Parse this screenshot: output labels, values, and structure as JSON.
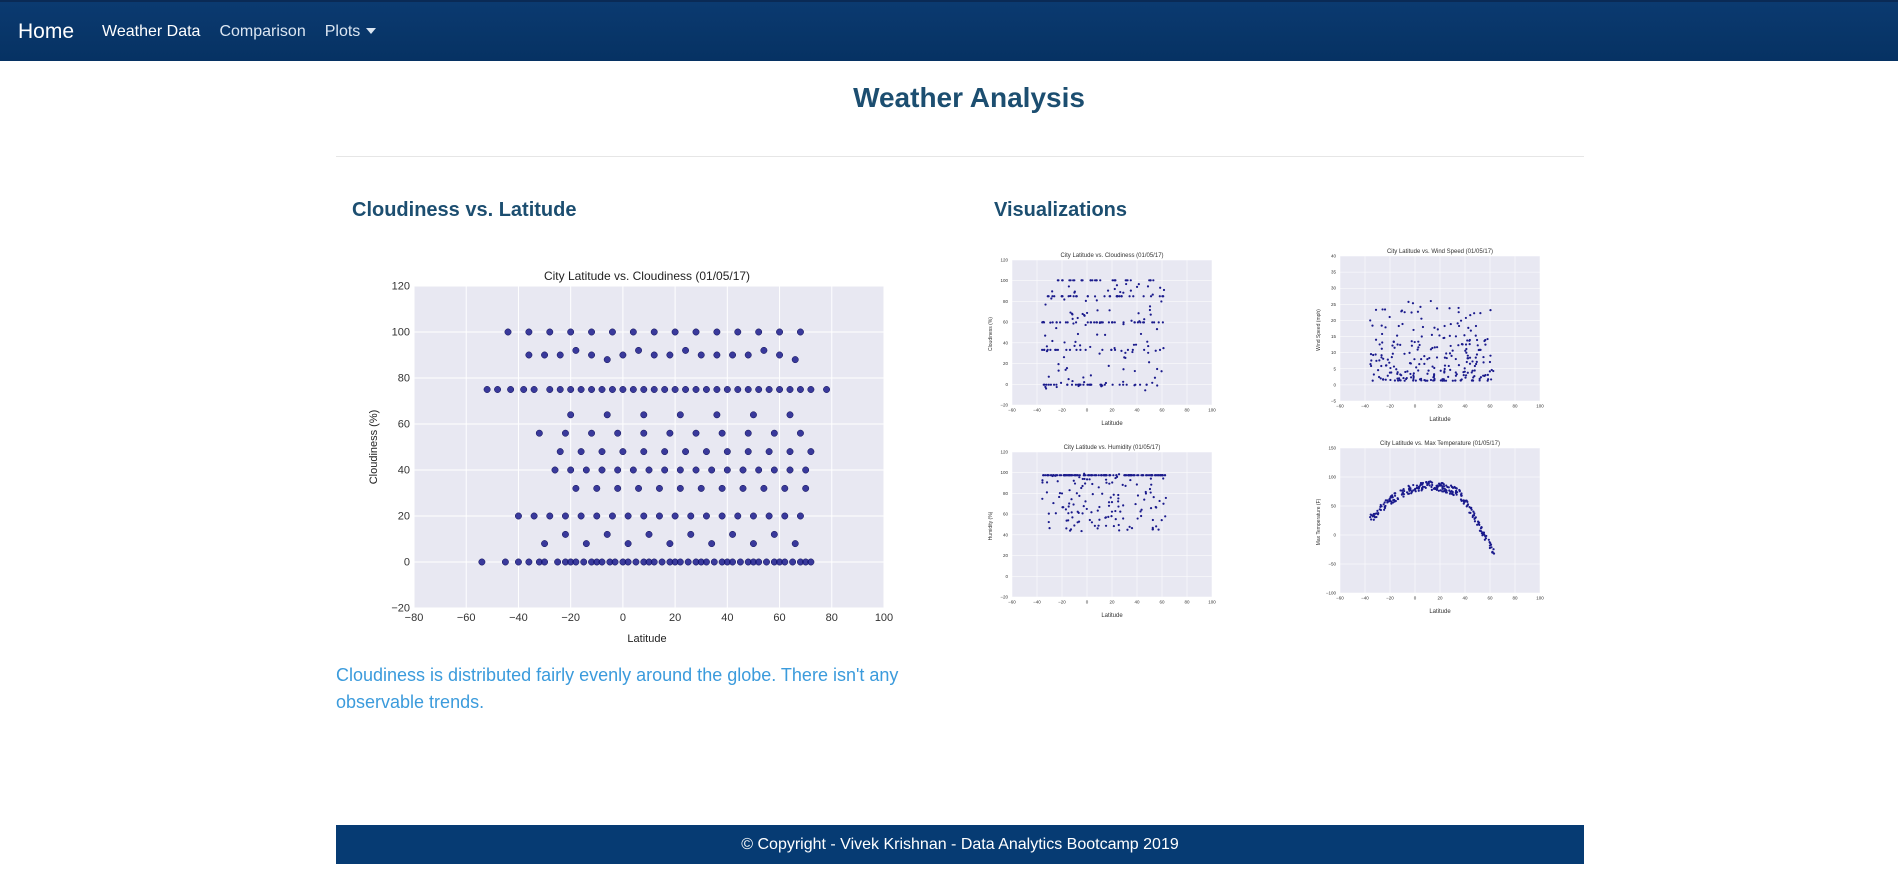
{
  "nav": {
    "brand": "Home",
    "links": [
      "Weather Data",
      "Comparison",
      "Plots"
    ]
  },
  "page_title": "Weather Analysis",
  "left_section": {
    "heading": "Cloudiness vs. Latitude",
    "description": "Cloudiness is distributed fairly evenly around the globe. There isn't any observable trends."
  },
  "right_section": {
    "heading": "Visualizations"
  },
  "footer": {
    "text": "© Copyright - Vivek Krishnan - Data Analytics Bootcamp 2019"
  },
  "colors": {
    "navbar": "#063263",
    "heading": "#1c4e70",
    "description": "#3b9bdc",
    "plot_bg": "#e8e8f2",
    "marker": "#1a1a8c"
  },
  "chart_data": [
    {
      "type": "scatter",
      "title": "City Latitude vs. Cloudiness (01/05/17)",
      "xlabel": "Latitude",
      "ylabel": "Cloudiness (%)",
      "xlim": [
        -80,
        100
      ],
      "ylim": [
        -20,
        120
      ],
      "xticks": [
        -80,
        -60,
        -40,
        -20,
        0,
        20,
        40,
        60,
        80,
        100
      ],
      "yticks": [
        -20,
        0,
        20,
        40,
        60,
        80,
        100,
        120
      ],
      "grid": true,
      "x": [
        -54,
        -45,
        -40,
        -36,
        -32,
        -30,
        -25,
        -22,
        -20,
        -18,
        -15,
        -12,
        -10,
        -8,
        -5,
        -3,
        0,
        2,
        5,
        8,
        10,
        12,
        15,
        18,
        20,
        22,
        25,
        28,
        30,
        32,
        35,
        38,
        40,
        42,
        45,
        48,
        50,
        52,
        55,
        58,
        60,
        62,
        65,
        68,
        70,
        72,
        -52,
        -48,
        -43,
        -38,
        -34,
        -28,
        -24,
        -20,
        -16,
        -12,
        -8,
        -4,
        0,
        4,
        8,
        12,
        16,
        20,
        24,
        28,
        32,
        36,
        40,
        44,
        48,
        52,
        56,
        60,
        64,
        68,
        72,
        -36,
        -30,
        -24,
        -18,
        -12,
        -6,
        0,
        6,
        12,
        18,
        24,
        30,
        36,
        42,
        48,
        54,
        60,
        66,
        -40,
        -34,
        -28,
        -22,
        -16,
        -10,
        -4,
        2,
        8,
        14,
        20,
        26,
        32,
        38,
        44,
        50,
        56,
        62,
        68,
        -26,
        -20,
        -14,
        -8,
        -2,
        4,
        10,
        16,
        22,
        28,
        34,
        40,
        46,
        52,
        58,
        64,
        70,
        -30,
        -22,
        -14,
        -6,
        2,
        10,
        18,
        26,
        34,
        42,
        50,
        58,
        66,
        -24,
        -16,
        -8,
        0,
        8,
        16,
        24,
        32,
        40,
        48,
        56,
        64,
        72,
        -18,
        -10,
        -2,
        6,
        14,
        22,
        30,
        38,
        46,
        54,
        62,
        70,
        -32,
        -22,
        -12,
        -2,
        8,
        18,
        28,
        38,
        48,
        58,
        68,
        -20,
        -6,
        8,
        22,
        36,
        50,
        64,
        -44,
        -36,
        -28,
        -20,
        -12,
        -4,
        4,
        12,
        20,
        28,
        36,
        44,
        52,
        60,
        68,
        78
      ],
      "y": [
        0,
        0,
        0,
        0,
        0,
        0,
        0,
        0,
        0,
        0,
        0,
        0,
        0,
        0,
        0,
        0,
        0,
        0,
        0,
        0,
        0,
        0,
        0,
        0,
        0,
        0,
        0,
        0,
        0,
        0,
        0,
        0,
        0,
        0,
        0,
        0,
        0,
        0,
        0,
        0,
        0,
        0,
        0,
        0,
        0,
        0,
        75,
        75,
        75,
        75,
        75,
        75,
        75,
        75,
        75,
        75,
        75,
        75,
        75,
        75,
        75,
        75,
        75,
        75,
        75,
        75,
        75,
        75,
        75,
        75,
        75,
        75,
        75,
        75,
        75,
        75,
        75,
        90,
        90,
        90,
        92,
        90,
        88,
        90,
        92,
        90,
        90,
        92,
        90,
        90,
        90,
        90,
        92,
        90,
        88,
        20,
        20,
        20,
        20,
        20,
        20,
        20,
        20,
        20,
        20,
        20,
        20,
        20,
        20,
        20,
        20,
        20,
        20,
        20,
        40,
        40,
        40,
        40,
        40,
        40,
        40,
        40,
        40,
        40,
        40,
        40,
        40,
        40,
        40,
        40,
        40,
        8,
        12,
        8,
        12,
        8,
        12,
        8,
        12,
        8,
        12,
        8,
        12,
        8,
        48,
        48,
        48,
        48,
        48,
        48,
        48,
        48,
        48,
        48,
        48,
        48,
        48,
        32,
        32,
        32,
        32,
        32,
        32,
        32,
        32,
        32,
        32,
        32,
        32,
        56,
        56,
        56,
        56,
        56,
        56,
        56,
        56,
        56,
        56,
        56,
        64,
        64,
        64,
        64,
        64,
        64,
        64,
        100,
        100,
        100,
        100,
        100,
        100,
        100,
        100,
        100,
        100,
        100,
        100,
        100,
        100,
        100,
        75
      ]
    },
    {
      "type": "scatter",
      "title": "City Latitude vs. Cloudiness (01/05/17)",
      "xlabel": "Latitude",
      "ylabel": "Cloudiness (%)",
      "xlim": [
        -60,
        100
      ],
      "ylim": [
        -20,
        120
      ],
      "xticks": [
        -60,
        -40,
        -20,
        0,
        20,
        40,
        60,
        80,
        100
      ],
      "yticks": [
        -20,
        0,
        20,
        40,
        60,
        80,
        100,
        120
      ]
    },
    {
      "type": "scatter",
      "title": "City Latitude vs. Wind Speed (01/05/17)",
      "xlabel": "Latitude",
      "ylabel": "Wind Speed (mph)",
      "xlim": [
        -60,
        100
      ],
      "ylim": [
        -5,
        40
      ],
      "xticks": [
        -60,
        -40,
        -20,
        0,
        20,
        40,
        60,
        80,
        100
      ],
      "yticks": [
        -5,
        0,
        5,
        10,
        15,
        20,
        25,
        30,
        35,
        40
      ]
    },
    {
      "type": "scatter",
      "title": "City Latitude vs. Humidity (01/05/17)",
      "xlabel": "Latitude",
      "ylabel": "Humidity (%)",
      "xlim": [
        -60,
        100
      ],
      "ylim": [
        -20,
        120
      ],
      "xticks": [
        -60,
        -40,
        -20,
        0,
        20,
        40,
        60,
        80,
        100
      ],
      "yticks": [
        -20,
        0,
        20,
        40,
        60,
        80,
        100,
        120
      ]
    },
    {
      "type": "scatter",
      "title": "City Latitude vs. Max Temperature (01/05/17)",
      "xlabel": "Latitude",
      "ylabel": "Max Temperature (F)",
      "xlim": [
        -60,
        100
      ],
      "ylim": [
        -100,
        150
      ],
      "xticks": [
        -60,
        -40,
        -20,
        0,
        20,
        40,
        60,
        80,
        100
      ],
      "yticks": [
        -100,
        -50,
        0,
        50,
        100,
        150
      ]
    }
  ]
}
